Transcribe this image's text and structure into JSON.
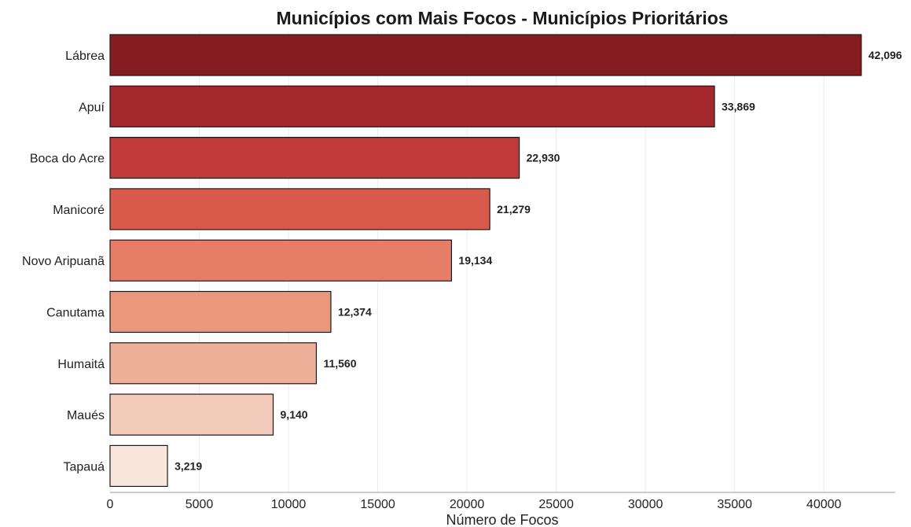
{
  "chart_data": {
    "type": "bar",
    "orientation": "horizontal",
    "title": "Municípios com Mais Focos - Municípios Prioritários",
    "xlabel": "Número de Focos",
    "ylabel": "",
    "categories": [
      "Lábrea",
      "Apuí",
      "Boca do Acre",
      "Manicoré",
      "Novo Aripuanã",
      "Canutama",
      "Humaitá",
      "Maués",
      "Tapauá"
    ],
    "values": [
      42096,
      33869,
      22930,
      21279,
      19134,
      12374,
      11560,
      9140,
      3219
    ],
    "value_labels": [
      "42,096",
      "33,869",
      "22,930",
      "21,279",
      "19,134",
      "12,374",
      "11,560",
      "9,140",
      "3,219"
    ],
    "xlim": [
      0,
      44000
    ],
    "xticks": [
      0,
      5000,
      10000,
      15000,
      20000,
      25000,
      30000,
      35000,
      40000
    ],
    "xtick_labels": [
      "0",
      "5000",
      "10000",
      "15000",
      "20000",
      "25000",
      "30000",
      "35000",
      "40000"
    ],
    "colors": [
      "#841c21",
      "#a5282d",
      "#c13a39",
      "#d95a4a",
      "#e87d67",
      "#eb977c",
      "#efb09a",
      "#f3cbbb",
      "#f8e5dc"
    ],
    "grid": "vertical"
  }
}
